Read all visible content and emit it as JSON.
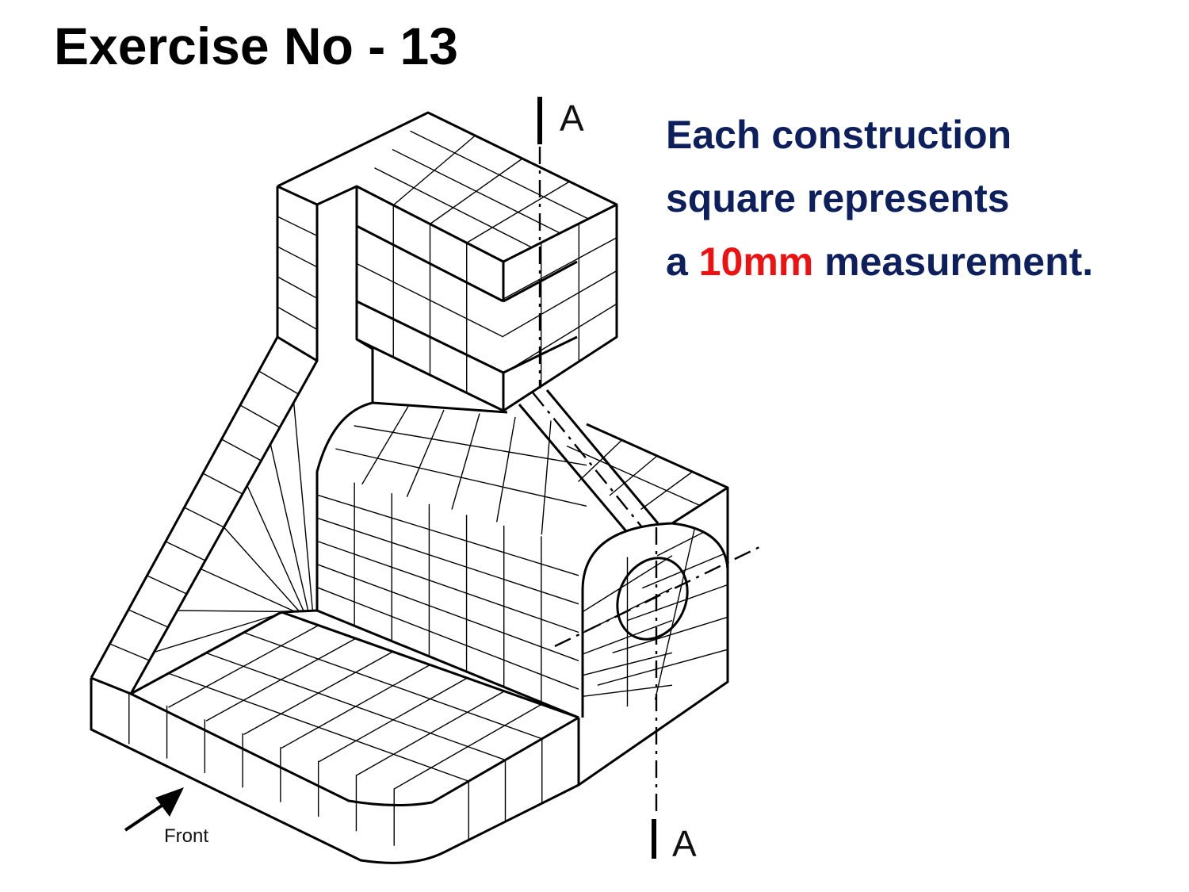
{
  "title": "Exercise No - 13",
  "note": {
    "line1": "Each construction",
    "line2": "square represents",
    "line3_prefix": "a ",
    "line3_highlight": "10mm",
    "line3_suffix": " measurement."
  },
  "section_label_top": "A",
  "section_label_bottom": "A",
  "front_label": "Front",
  "colors": {
    "note_text": "#0d1f5c",
    "highlight": "#ee1111",
    "line": "#000000"
  }
}
